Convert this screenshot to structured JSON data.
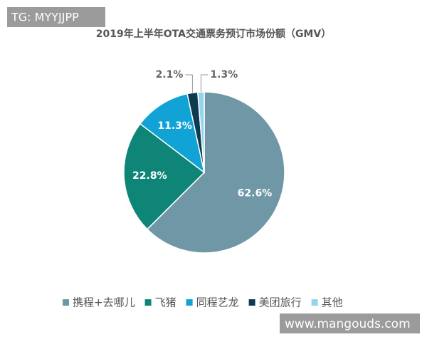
{
  "chart_data": {
    "type": "pie",
    "title": "2019年上半年OTA交通票务预订市场份额（GMV）",
    "categories": [
      "携程+去哪儿",
      "飞猪",
      "同程艺龙",
      "美团旅行",
      "其他"
    ],
    "values": [
      62.6,
      22.8,
      11.3,
      2.1,
      1.3
    ],
    "value_labels": [
      "62.6%",
      "22.8%",
      "11.3%",
      "2.1%",
      "1.3%"
    ],
    "colors": [
      "#6f97a6",
      "#0f8577",
      "#12a3d6",
      "#0e3a50",
      "#94d4ec"
    ],
    "legend": "bottom"
  },
  "watermarks": [
    "TG: MYYJJPP",
    "www.mangouds.com"
  ]
}
